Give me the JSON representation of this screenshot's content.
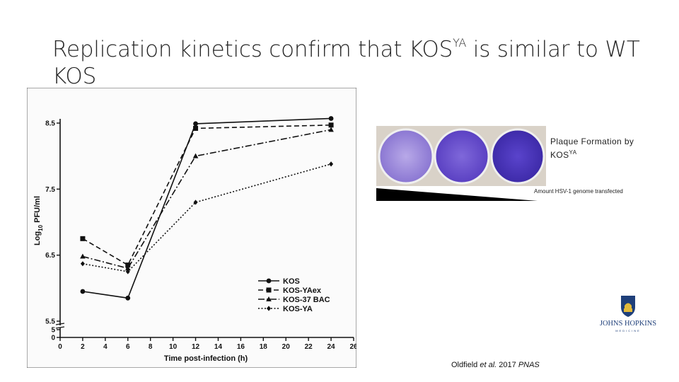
{
  "slide": {
    "title_part1": "Replication kinetics confirm that KOS",
    "title_sup": "YA",
    "title_part2": " is similar to WT KOS"
  },
  "plaque": {
    "caption_line1": "Plaque Formation by",
    "caption_line2_main": "KOS",
    "caption_line2_sup": "YA",
    "amount_label": "Amount HSV-1 genome transfected"
  },
  "citation": {
    "authors": "Oldfield ",
    "etal": "et al.",
    "year": " 2017 ",
    "journal": "PNAS"
  },
  "logo": {
    "text_main": "JOHNS HOPKINS",
    "text_sub": "MEDICINE"
  },
  "chart_data": {
    "type": "line",
    "xlabel": "Time post-infection (h)",
    "ylabel_main": "Log",
    "ylabel_sub": "10",
    "ylabel_rest": " PFU/ml",
    "x_ticks": [
      0,
      2,
      4,
      6,
      8,
      10,
      12,
      14,
      16,
      18,
      20,
      22,
      24,
      26
    ],
    "y_ticks": [
      5.5,
      6.5,
      7.5,
      8.5
    ],
    "y_ticks_low": [
      0,
      5
    ],
    "xlim": [
      0,
      26
    ],
    "ylim": [
      5.5,
      8.5
    ],
    "axis_break": true,
    "x": [
      2,
      6,
      12,
      24
    ],
    "series": [
      {
        "name": "KOS",
        "values": [
          5.95,
          5.85,
          8.49,
          8.57
        ],
        "marker": "circle",
        "dash": "solid"
      },
      {
        "name": "KOS-YAex",
        "values": [
          6.75,
          6.35,
          8.42,
          8.47
        ],
        "marker": "square",
        "dash": "dashed"
      },
      {
        "name": "KOS-37 BAC",
        "values": [
          6.48,
          6.3,
          8.0,
          8.4
        ],
        "marker": "triangle",
        "dash": "dashdot"
      },
      {
        "name": "KOS-YA",
        "values": [
          6.37,
          6.25,
          7.3,
          7.88
        ],
        "marker": "diamond",
        "dash": "dotted"
      }
    ],
    "legend_position": "lower-middle",
    "grid": false
  }
}
